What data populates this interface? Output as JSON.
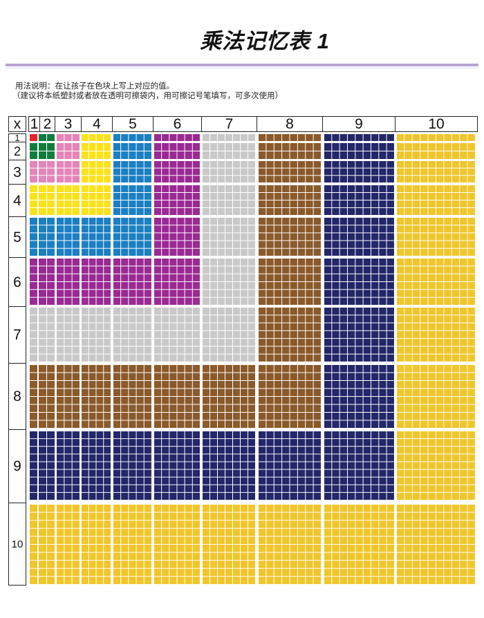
{
  "title": "乘法记忆表 1",
  "instructions": {
    "line1": "用法说明：在让孩子在色块上写上对应的值。",
    "line2": "（建议将本纸塑封或者放在透明可擦袋内，用可擦记号笔填写，可多次使用）"
  },
  "table": {
    "corner_label": "x",
    "column_headers": [
      "1",
      "2",
      "3",
      "4",
      "5",
      "6",
      "7",
      "8",
      "9",
      "10"
    ],
    "row_headers": [
      "1",
      "2",
      "3",
      "4",
      "5",
      "6",
      "7",
      "8",
      "9",
      "10"
    ],
    "block_colors": [
      "#e8232b",
      "#127c3f",
      "#e485b9",
      "#fbe21a",
      "#1b7fc2",
      "#9a2a93",
      "#c9c9c9",
      "#8b5a2b",
      "#232769",
      "#f1c62b"
    ],
    "grid_line_color": "#ffffff",
    "rule_color": "#b9a3d3"
  }
}
